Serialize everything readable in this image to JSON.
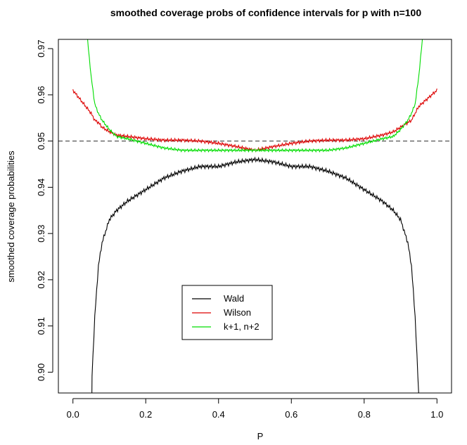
{
  "chart_data": {
    "type": "line",
    "title": "smoothed coverage probs of confidence intervals for p with n=100",
    "xlabel": "P",
    "ylabel": "smoothed coverage probabilities",
    "xlim": [
      0,
      1
    ],
    "ylim": [
      0.8955,
      0.972
    ],
    "x_ticks": [
      "0.0",
      "0.2",
      "0.4",
      "0.6",
      "0.8",
      "1.0"
    ],
    "y_ticks": [
      "0.90",
      "0.91",
      "0.92",
      "0.93",
      "0.94",
      "0.95",
      "0.96",
      "0.97"
    ],
    "reference_line": {
      "y": 0.95,
      "style": "dashed"
    },
    "legend_position": "bottom-center",
    "x": [
      0.0,
      0.05,
      0.06,
      0.07,
      0.08,
      0.1,
      0.12,
      0.15,
      0.2,
      0.25,
      0.3,
      0.35,
      0.4,
      0.45,
      0.5,
      0.55,
      0.6,
      0.65,
      0.7,
      0.75,
      0.8,
      0.85,
      0.88,
      0.9,
      0.92,
      0.93,
      0.94,
      0.95,
      1.0
    ],
    "series": [
      {
        "name": "Wald",
        "color": "#000000",
        "values": [
          null,
          0.895,
          0.912,
          0.923,
          0.928,
          0.933,
          0.935,
          0.937,
          0.9395,
          0.942,
          0.9435,
          0.9445,
          0.9445,
          0.9455,
          0.946,
          0.9455,
          0.9445,
          0.9445,
          0.9435,
          0.942,
          0.9395,
          0.937,
          0.935,
          0.933,
          0.928,
          0.923,
          0.912,
          0.895,
          null
        ]
      },
      {
        "name": "Wilson",
        "color": "#dd0000",
        "values": [
          0.961,
          0.956,
          0.9545,
          0.954,
          0.953,
          0.952,
          0.9513,
          0.951,
          0.9505,
          0.9502,
          0.9502,
          0.95,
          0.9495,
          0.9488,
          0.948,
          0.9488,
          0.9495,
          0.95,
          0.9502,
          0.9502,
          0.9505,
          0.9513,
          0.952,
          0.953,
          0.954,
          0.9545,
          0.956,
          0.9575,
          0.961
        ]
      },
      {
        "name": "k+1, n+2",
        "color": "#00dd00",
        "values": [
          null,
          0.964,
          0.958,
          0.956,
          0.9545,
          0.9525,
          0.951,
          0.9505,
          0.9495,
          0.9485,
          0.948,
          0.948,
          0.948,
          0.948,
          0.948,
          0.948,
          0.948,
          0.948,
          0.948,
          0.9485,
          0.9495,
          0.9505,
          0.951,
          0.9525,
          0.9545,
          0.956,
          0.958,
          0.964,
          null
        ]
      }
    ]
  }
}
